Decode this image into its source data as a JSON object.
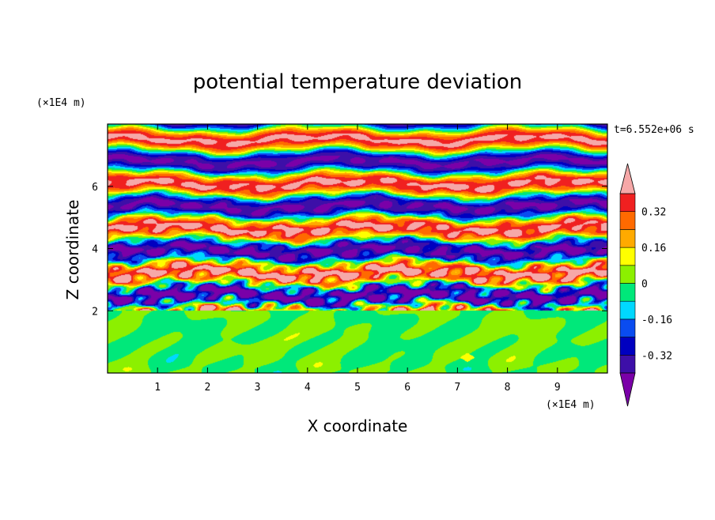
{
  "chart_data": {
    "type": "heatmap",
    "title": "potential temperature deviation",
    "xlabel": "X coordinate",
    "ylabel": "Z coordinate",
    "x_unit": "(×1E4 m)",
    "y_unit": "(×1E4 m)",
    "time_label": "t=6.552e+06 s",
    "xlim": [
      0,
      10
    ],
    "ylim": [
      0,
      8
    ],
    "x_ticks": [
      1,
      2,
      3,
      4,
      5,
      6,
      7,
      8,
      9
    ],
    "y_ticks": [
      2,
      4,
      6
    ],
    "interface_z": 2,
    "colorbar": {
      "levels": [
        -0.4,
        -0.32,
        -0.24,
        -0.16,
        -0.08,
        0,
        0.08,
        0.16,
        0.24,
        0.32,
        0.4
      ],
      "tick_labels": [
        "0.32",
        "0.16",
        "0",
        "-0.16",
        "-0.32"
      ],
      "tick_values": [
        0.32,
        0.16,
        0,
        -0.16,
        -0.32
      ],
      "colors": [
        "#7a00a8",
        "#3d0fa8",
        "#0000c0",
        "#0a4cf0",
        "#00d8ff",
        "#00e87a",
        "#8cf000",
        "#ffff00",
        "#ffaa00",
        "#ff6a00",
        "#f02020",
        "#f6a8a8"
      ],
      "extend": "both"
    }
  }
}
